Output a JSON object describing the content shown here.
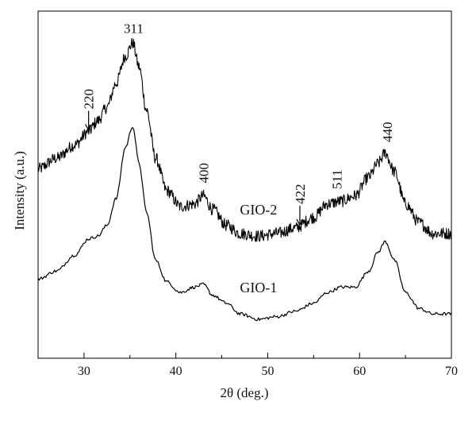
{
  "chart_data": {
    "type": "line",
    "xlabel": "2θ (deg.)",
    "ylabel": "Intensity (a.u.)",
    "xlim": [
      25,
      70
    ],
    "xticks": [
      30,
      40,
      50,
      60,
      70
    ],
    "yticks_shown": false,
    "grid": false,
    "series": [
      {
        "name": "GIO-2",
        "noisy": true,
        "x": [
          25,
          27,
          29,
          30.5,
          31.5,
          32.5,
          33.5,
          34.5,
          35.3,
          36,
          36.8,
          37.8,
          39,
          40.5,
          42,
          43,
          44,
          45.5,
          47,
          49,
          51,
          53,
          55,
          56.5,
          58,
          59.5,
          61,
          62,
          62.8,
          63.8,
          65,
          66.5,
          68,
          70
        ],
        "values": [
          0.56,
          0.6,
          0.65,
          0.7,
          0.74,
          0.79,
          0.88,
          0.98,
          1.03,
          0.94,
          0.78,
          0.6,
          0.48,
          0.42,
          0.43,
          0.46,
          0.41,
          0.35,
          0.32,
          0.31,
          0.32,
          0.34,
          0.38,
          0.43,
          0.44,
          0.46,
          0.53,
          0.58,
          0.62,
          0.55,
          0.43,
          0.36,
          0.32,
          0.32
        ]
      },
      {
        "name": "GIO-1",
        "noisy": false,
        "x": [
          25,
          27,
          29,
          30.5,
          31.5,
          32.5,
          33.5,
          34.5,
          35.3,
          36,
          36.8,
          37.8,
          39,
          40.5,
          42,
          43,
          44,
          45.5,
          47,
          49,
          51,
          53,
          55,
          56.5,
          58,
          59.5,
          61,
          62,
          62.8,
          63.8,
          65,
          66.5,
          68,
          70
        ],
        "values": [
          0.15,
          0.18,
          0.24,
          0.3,
          0.31,
          0.35,
          0.45,
          0.64,
          0.72,
          0.58,
          0.4,
          0.22,
          0.14,
          0.1,
          0.12,
          0.13,
          0.09,
          0.06,
          0.02,
          0.0,
          0.01,
          0.03,
          0.06,
          0.1,
          0.12,
          0.12,
          0.18,
          0.25,
          0.29,
          0.22,
          0.1,
          0.04,
          0.02,
          0.02
        ]
      }
    ],
    "annotations": [
      {
        "label": "311",
        "x": 35.4
      },
      {
        "label": "220",
        "x": 30.5,
        "arrow": true
      },
      {
        "label": "400",
        "x": 43.0
      },
      {
        "label": "422",
        "x": 53.5,
        "arrow": true
      },
      {
        "label": "511",
        "x": 57.5
      },
      {
        "label": "440",
        "x": 63.0
      }
    ]
  }
}
